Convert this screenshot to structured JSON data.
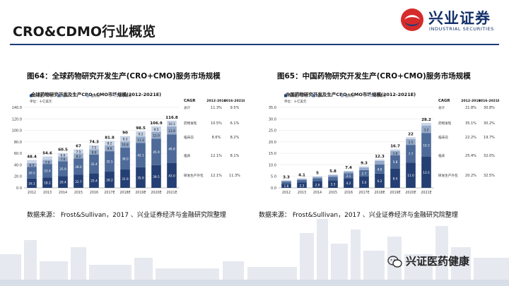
{
  "slide": {
    "title": "CRO&CDMO行业概览",
    "logo_cn": "兴业证券",
    "logo_en": "INDUSTRIAL SECURITIES",
    "wechat_label": "兴证医药健康"
  },
  "figures": [
    {
      "label": "图64：全球药物研究开发生产(CRO+CMO)服务市场规模",
      "source": "数据来源： Frost&Sullivan，2017 、兴业证券经济与金融研究院整理"
    },
    {
      "label": "图65：中国药物研究开发生产(CRO+CMO)服务市场规模",
      "source": "数据来源： Frost&Sullivan，2017 、兴业证券经济与金融研究院整理"
    }
  ],
  "colors": {
    "navy": "#1d3c78",
    "seg1": "#243f73",
    "seg2": "#4d6a99",
    "seg3": "#93a8c8",
    "seg4": "#c7d3e6"
  },
  "chart_data": [
    {
      "type": "bar",
      "stacked": true,
      "title": "全球药物研究开发及生产CRO+CMO市场规模(2012-2021E)",
      "ylabel": "十亿美元",
      "ylim": [
        0,
        140
      ],
      "yticks": [
        "0.0",
        "20.0",
        "40.0",
        "60.0",
        "80.0",
        "100.0",
        "120.0",
        "140.0"
      ],
      "categories": [
        "2012",
        "2013",
        "2014",
        "2015",
        "2016",
        "2017E",
        "2018E",
        "2019E",
        "2020E",
        "2021E"
      ],
      "totals": [
        48.4,
        54.6,
        60.5,
        67,
        74.3,
        81.8,
        90,
        98.5,
        106.9,
        116.8
      ],
      "series": [
        {
          "name": "研发生产外包",
          "values": [
            16.1,
            18.2,
            20.4,
            22.7,
            25.4,
            28.2,
            31.9,
            35.9,
            39.5,
            43.0
          ]
        },
        {
          "name": "临床",
          "values": [
            20.5,
            23.4,
            25.9,
            28.6,
            32.4,
            35.5,
            38.0,
            42.1,
            45.9,
            49.8
          ]
        },
        {
          "name": "临床前",
          "values": [
            6.5,
            7.0,
            7.6,
            8.2,
            9.0,
            9.9,
            10.8,
            11.3,
            12.0,
            13.9
          ]
        },
        {
          "name": "药物发现",
          "values": [
            5.3,
            6.0,
            6.6,
            7.5,
            7.5,
            8.2,
            9.3,
            9.2,
            9.5,
            10.1
          ]
        }
      ],
      "legend": [
        "研发生产外包",
        "临床",
        "临床前",
        "药物发现"
      ],
      "cagr_header": [
        "CAGR",
        "2012-2016",
        "2016-2021E"
      ],
      "cagr_rows": [
        {
          "label": "总计",
          "a": "11.3%",
          "b": "9.5%"
        },
        {
          "label": "药物发现",
          "a": "10.5%",
          "b": "6.1%"
        },
        {
          "label": "临床前",
          "a": "8.6%",
          "b": "8.2%"
        },
        {
          "label": "临床",
          "a": "12.1%",
          "b": "8.1%"
        },
        {
          "label": "研发生产外包",
          "a": "12.1%",
          "b": "11.3%"
        }
      ],
      "unit_label": "单位：十亿美元"
    },
    {
      "type": "bar",
      "stacked": true,
      "title": "中国药物研究开发及生产CRO+CMO市场规模(2012-2021E)",
      "ylabel": "十亿美元",
      "ylim": [
        0,
        35
      ],
      "yticks": [
        "0.0",
        "5.0",
        "10.0",
        "15.0",
        "20.0",
        "25.0",
        "30.0",
        "35.0"
      ],
      "categories": [
        "2012",
        "2013",
        "2014",
        "2015",
        "2016",
        "2017E",
        "2018E",
        "2019E",
        "2020E",
        "2021E"
      ],
      "totals": [
        3.3,
        4.1,
        5.0,
        5.8,
        7.4,
        9.3,
        12.3,
        16.7,
        22.0,
        28.2
      ],
      "series": [
        {
          "name": "研发生产外包",
          "values": [
            1.8,
            2.3,
            2.9,
            3.3,
            4.2,
            5.0,
            6.2,
            8.4,
            11.0,
            13.5
          ]
        },
        {
          "name": "临床",
          "values": [
            0.9,
            1.1,
            1.3,
            1.5,
            2.1,
            2.7,
            4.0,
            5.8,
            7.7,
            10.3
          ]
        },
        {
          "name": "临床前",
          "values": [
            0.4,
            0.5,
            0.6,
            0.7,
            0.8,
            1.1,
            1.5,
            1.8,
            2.5,
            3.2
          ]
        },
        {
          "name": "药物发现",
          "values": [
            0.2,
            0.2,
            0.2,
            0.3,
            0.3,
            0.5,
            0.6,
            0.7,
            0.8,
            1.2
          ]
        }
      ],
      "legend": [
        "研发生产外包",
        "临床",
        "临床前",
        "药物发现"
      ],
      "cagr_header": [
        "CAGR",
        "2012-2016",
        "2016-2021E"
      ],
      "cagr_rows": [
        {
          "label": "总计",
          "a": "21.8%",
          "b": "30.8%"
        },
        {
          "label": "药物发现",
          "a": "35.1%",
          "b": "30.2%"
        },
        {
          "label": "临床前",
          "a": "22.2%",
          "b": "19.7%"
        },
        {
          "label": "临床",
          "a": "25.4%",
          "b": "32.0%"
        },
        {
          "label": "研发生产外包",
          "a": "20.2%",
          "b": "32.5%"
        }
      ],
      "unit_label": "单位：十亿美元"
    }
  ]
}
